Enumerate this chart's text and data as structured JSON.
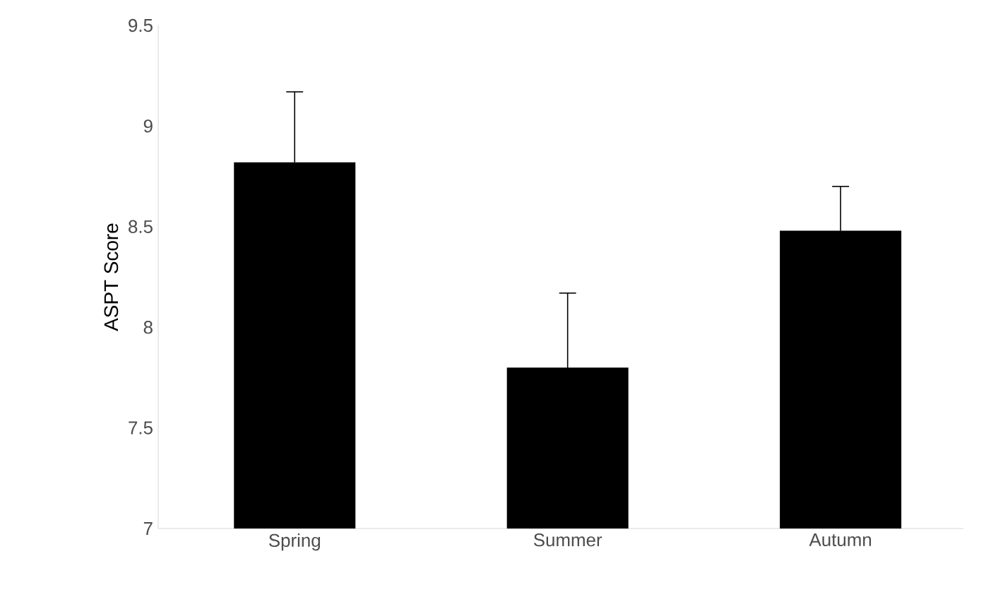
{
  "chart_data": {
    "type": "bar",
    "ylabel": "ASPT Score",
    "categories": [
      "Spring",
      "Summer",
      "Autumn"
    ],
    "values": [
      8.82,
      7.8,
      8.48
    ],
    "errors": [
      0.35,
      0.37,
      0.22
    ],
    "color": "#000000",
    "ylim": [
      7,
      9.5
    ],
    "yticks": [
      7,
      7.5,
      8,
      8.5,
      9,
      9.5
    ],
    "grid": false
  }
}
